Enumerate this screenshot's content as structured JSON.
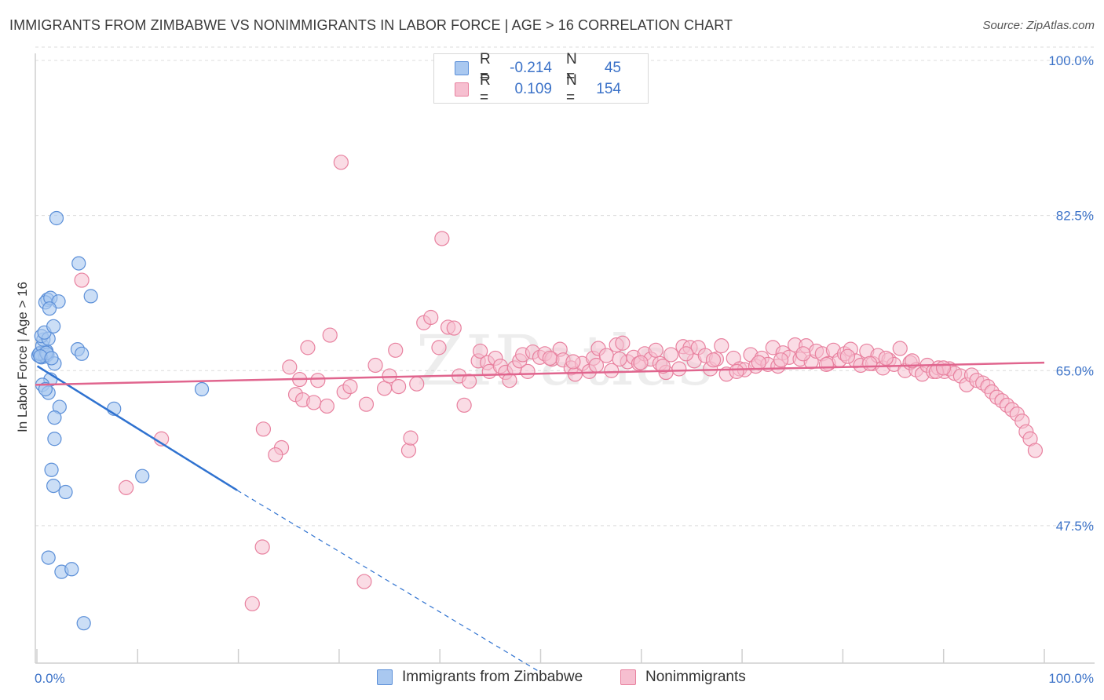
{
  "title": "IMMIGRANTS FROM ZIMBABWE VS NONIMMIGRANTS IN LABOR FORCE | AGE > 16 CORRELATION CHART",
  "source": "Source: ZipAtlas.com",
  "legend": {
    "rows": [
      {
        "r_label": "R =",
        "r_value": "-0.214",
        "n_label": "N =",
        "n_value": "45"
      },
      {
        "r_label": "R =",
        "r_value": "0.109",
        "n_label": "N =",
        "n_value": "154"
      }
    ]
  },
  "bottom_legend": {
    "series1": "Immigrants from Zimbabwe",
    "series2": "Nonimmigrants"
  },
  "colors": {
    "blue_fill": "#a9c8f0",
    "blue_stroke": "#5b8fd8",
    "blue_line": "#2f72d0",
    "pink_fill": "#f6bfd0",
    "pink_stroke": "#e8819f",
    "pink_line": "#e0658e",
    "tick_text": "#3b72c8",
    "grid": "#dcdcdc"
  },
  "chart_data": {
    "type": "scatter",
    "title": "IMMIGRANTS FROM ZIMBABWE VS NONIMMIGRANTS IN LABOR FORCE | AGE > 16 CORRELATION CHART",
    "xlabel": "",
    "ylabel": "In Labor Force | Age > 16",
    "xlim": [
      0,
      100
    ],
    "ylim": [
      32,
      101.5
    ],
    "y_ticks": [
      47.5,
      65.0,
      82.5,
      100.0
    ],
    "y_tick_labels": [
      "47.5%",
      "65.0%",
      "82.5%",
      "100.0%"
    ],
    "x_tick_labels": [
      "0.0%",
      "100.0%"
    ],
    "watermark": "ZIPatlas",
    "series": [
      {
        "name": "Immigrants from Zimbabwe",
        "r": -0.214,
        "n": 45,
        "trend": {
          "x0": 0.2,
          "y0": 65.5,
          "x1": 20.0,
          "y1": 51.5,
          "dash_to_x": 50.0,
          "dash_to_y": 31.0
        },
        "points": [
          [
            0.3,
            66.7
          ],
          [
            0.6,
            66.5
          ],
          [
            0.9,
            66.8
          ],
          [
            0.5,
            67.0
          ],
          [
            1.0,
            66.6
          ],
          [
            0.4,
            66.9
          ],
          [
            1.1,
            67.2
          ],
          [
            0.7,
            67.8
          ],
          [
            1.2,
            66.8
          ],
          [
            0.8,
            68.5
          ],
          [
            0.6,
            68.9
          ],
          [
            1.3,
            68.6
          ],
          [
            0.9,
            69.3
          ],
          [
            1.8,
            70.0
          ],
          [
            1.2,
            73.0
          ],
          [
            1.0,
            72.7
          ],
          [
            1.5,
            73.2
          ],
          [
            2.3,
            72.8
          ],
          [
            1.4,
            72.0
          ],
          [
            2.1,
            82.2
          ],
          [
            4.3,
            77.1
          ],
          [
            5.5,
            73.4
          ],
          [
            4.2,
            67.4
          ],
          [
            4.6,
            66.9
          ],
          [
            1.9,
            65.8
          ],
          [
            1.5,
            64.0
          ],
          [
            0.7,
            63.4
          ],
          [
            1.3,
            62.5
          ],
          [
            1.0,
            62.9
          ],
          [
            2.4,
            60.9
          ],
          [
            1.9,
            59.7
          ],
          [
            7.8,
            60.7
          ],
          [
            16.5,
            62.9
          ],
          [
            1.9,
            57.3
          ],
          [
            1.6,
            53.8
          ],
          [
            1.8,
            52.0
          ],
          [
            3.0,
            51.3
          ],
          [
            10.6,
            53.1
          ],
          [
            1.3,
            43.9
          ],
          [
            2.6,
            42.3
          ],
          [
            3.6,
            42.6
          ],
          [
            4.8,
            36.5
          ],
          [
            1.1,
            67.0
          ],
          [
            0.5,
            66.6
          ],
          [
            1.6,
            66.4
          ]
        ]
      },
      {
        "name": "Nonimmigrants",
        "r": 0.109,
        "n": 154,
        "trend": {
          "x0": 0.0,
          "y0": 63.4,
          "x1": 100.0,
          "y1": 65.9
        },
        "points": [
          [
            4.6,
            75.2
          ],
          [
            12.5,
            57.3
          ],
          [
            9.0,
            51.8
          ],
          [
            30.3,
            88.5
          ],
          [
            40.3,
            79.9
          ],
          [
            22.6,
            58.4
          ],
          [
            24.4,
            56.3
          ],
          [
            23.8,
            55.5
          ],
          [
            22.5,
            45.1
          ],
          [
            21.5,
            38.7
          ],
          [
            32.6,
            41.2
          ],
          [
            25.2,
            65.4
          ],
          [
            25.8,
            62.3
          ],
          [
            26.2,
            64.0
          ],
          [
            26.5,
            61.7
          ],
          [
            27.0,
            67.6
          ],
          [
            27.6,
            61.4
          ],
          [
            28.0,
            63.9
          ],
          [
            28.9,
            61.0
          ],
          [
            29.2,
            69.0
          ],
          [
            30.6,
            62.6
          ],
          [
            31.2,
            63.2
          ],
          [
            32.8,
            61.2
          ],
          [
            33.7,
            65.6
          ],
          [
            34.6,
            63.0
          ],
          [
            35.1,
            64.4
          ],
          [
            35.7,
            67.3
          ],
          [
            36.0,
            63.2
          ],
          [
            37.0,
            56.0
          ],
          [
            37.2,
            57.4
          ],
          [
            37.8,
            63.5
          ],
          [
            38.5,
            70.4
          ],
          [
            39.2,
            71.0
          ],
          [
            40.0,
            67.6
          ],
          [
            40.9,
            69.9
          ],
          [
            41.5,
            69.8
          ],
          [
            42.0,
            64.4
          ],
          [
            42.5,
            61.1
          ],
          [
            43.0,
            63.8
          ],
          [
            43.9,
            66.1
          ],
          [
            44.1,
            67.2
          ],
          [
            44.8,
            65.9
          ],
          [
            45.0,
            64.9
          ],
          [
            45.6,
            66.4
          ],
          [
            46.1,
            65.5
          ],
          [
            46.6,
            64.8
          ],
          [
            47.0,
            63.9
          ],
          [
            47.5,
            65.3
          ],
          [
            48.0,
            66.1
          ],
          [
            48.3,
            66.8
          ],
          [
            48.8,
            64.9
          ],
          [
            49.3,
            67.1
          ],
          [
            50.0,
            66.5
          ],
          [
            50.5,
            66.9
          ],
          [
            51.2,
            66.3
          ],
          [
            52.0,
            67.4
          ],
          [
            52.3,
            66.2
          ],
          [
            53.1,
            65.3
          ],
          [
            53.5,
            64.6
          ],
          [
            54.2,
            65.8
          ],
          [
            54.9,
            64.9
          ],
          [
            55.3,
            66.4
          ],
          [
            55.8,
            67.5
          ],
          [
            56.6,
            66.7
          ],
          [
            57.1,
            65.0
          ],
          [
            57.6,
            67.9
          ],
          [
            58.2,
            68.1
          ],
          [
            58.7,
            66.0
          ],
          [
            59.3,
            66.5
          ],
          [
            59.8,
            65.8
          ],
          [
            60.4,
            66.9
          ],
          [
            61.0,
            66.3
          ],
          [
            61.5,
            67.3
          ],
          [
            61.9,
            65.8
          ],
          [
            62.5,
            64.8
          ],
          [
            63.0,
            66.8
          ],
          [
            63.8,
            65.2
          ],
          [
            64.2,
            67.7
          ],
          [
            64.9,
            67.6
          ],
          [
            65.3,
            66.1
          ],
          [
            65.7,
            67.6
          ],
          [
            66.4,
            66.7
          ],
          [
            66.9,
            65.2
          ],
          [
            67.5,
            66.3
          ],
          [
            68.0,
            67.8
          ],
          [
            68.5,
            64.6
          ],
          [
            69.2,
            66.4
          ],
          [
            69.8,
            65.2
          ],
          [
            70.3,
            65.1
          ],
          [
            70.9,
            66.8
          ],
          [
            71.4,
            65.5
          ],
          [
            72.0,
            66.4
          ],
          [
            72.6,
            65.7
          ],
          [
            73.1,
            67.6
          ],
          [
            73.6,
            65.5
          ],
          [
            74.1,
            67.0
          ],
          [
            74.7,
            66.5
          ],
          [
            75.3,
            67.9
          ],
          [
            75.8,
            66.3
          ],
          [
            76.4,
            67.8
          ],
          [
            76.9,
            66.0
          ],
          [
            77.4,
            67.2
          ],
          [
            78.0,
            66.9
          ],
          [
            78.6,
            65.8
          ],
          [
            79.1,
            67.3
          ],
          [
            79.7,
            66.2
          ],
          [
            80.2,
            66.9
          ],
          [
            80.8,
            67.4
          ],
          [
            81.3,
            66.1
          ],
          [
            81.8,
            65.6
          ],
          [
            82.4,
            67.2
          ],
          [
            83.0,
            65.8
          ],
          [
            83.5,
            66.7
          ],
          [
            84.0,
            65.3
          ],
          [
            84.6,
            66.2
          ],
          [
            85.1,
            65.7
          ],
          [
            85.7,
            67.5
          ],
          [
            86.2,
            65.0
          ],
          [
            86.7,
            65.9
          ],
          [
            87.3,
            65.1
          ],
          [
            87.9,
            64.6
          ],
          [
            88.4,
            65.6
          ],
          [
            89.0,
            64.9
          ],
          [
            89.5,
            65.3
          ],
          [
            90.1,
            64.9
          ],
          [
            90.6,
            65.2
          ],
          [
            91.1,
            64.7
          ],
          [
            91.7,
            64.4
          ],
          [
            92.3,
            63.4
          ],
          [
            92.8,
            64.5
          ],
          [
            93.3,
            63.9
          ],
          [
            93.9,
            63.6
          ],
          [
            94.4,
            63.2
          ],
          [
            94.8,
            62.6
          ],
          [
            95.3,
            62.0
          ],
          [
            95.8,
            61.6
          ],
          [
            96.3,
            61.1
          ],
          [
            96.8,
            60.6
          ],
          [
            97.3,
            60.1
          ],
          [
            97.8,
            59.3
          ],
          [
            98.2,
            58.1
          ],
          [
            98.6,
            57.3
          ],
          [
            99.1,
            56.0
          ],
          [
            89.3,
            64.9
          ],
          [
            90.0,
            65.3
          ],
          [
            86.9,
            66.1
          ],
          [
            84.3,
            66.4
          ],
          [
            82.7,
            65.8
          ],
          [
            80.5,
            66.6
          ],
          [
            78.4,
            65.7
          ],
          [
            76.1,
            66.9
          ],
          [
            73.9,
            66.2
          ],
          [
            71.7,
            65.9
          ],
          [
            69.5,
            64.9
          ],
          [
            67.2,
            66.2
          ],
          [
            64.5,
            66.9
          ],
          [
            62.2,
            65.5
          ],
          [
            60.0,
            65.9
          ],
          [
            57.9,
            66.3
          ],
          [
            55.6,
            65.6
          ],
          [
            53.3,
            66.0
          ],
          [
            51.0,
            66.4
          ]
        ]
      }
    ]
  }
}
